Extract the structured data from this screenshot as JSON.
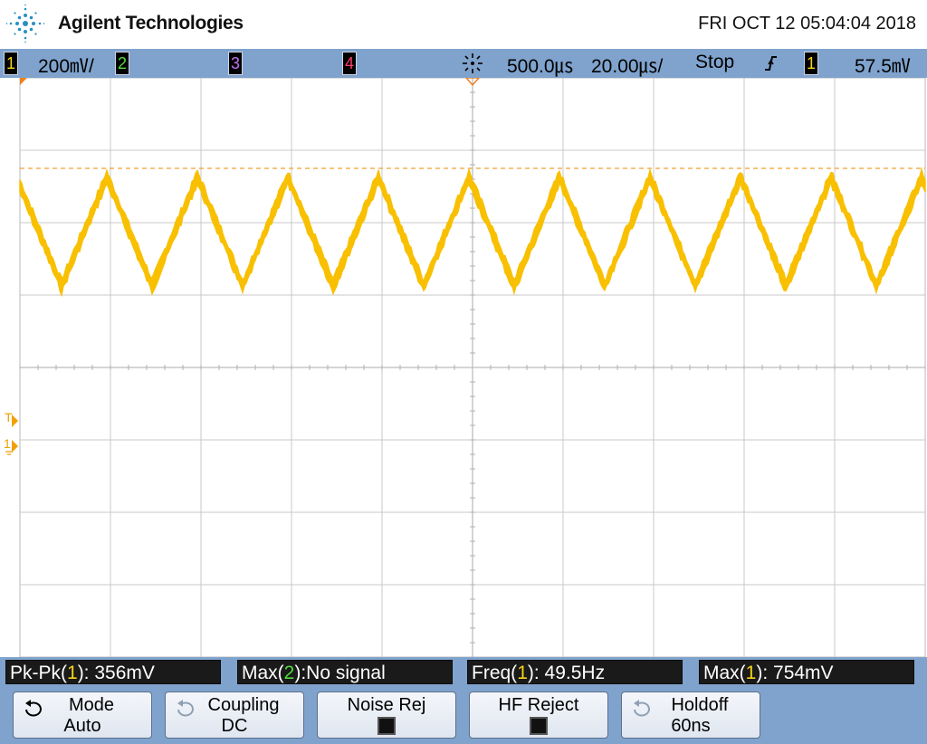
{
  "header": {
    "brand": "Agilent Technologies",
    "datetime": "FRI OCT 12 05:04:04 2018",
    "logo_icon": "agilent-spark-icon"
  },
  "status_bar": {
    "ch1": {
      "num": "1",
      "scale": "200㎷/",
      "color": "#f6d31a"
    },
    "ch2": {
      "num": "2",
      "color": "#4fdc3a"
    },
    "ch3": {
      "num": "3",
      "color": "#c070f0"
    },
    "ch4": {
      "num": "4",
      "color": "#ff3c6e"
    },
    "trigger_icon": "trigger-burst-icon",
    "time_delay": "500.0㎲",
    "time_scale": "20.00㎲/",
    "run_state": "Stop",
    "trigger_edge_icon": "rising-edge-icon",
    "trigger_source": "1",
    "trigger_level": "57.5㎷"
  },
  "screen": {
    "trace_color": "#f8c000",
    "trigger_level_line_color": "#f0a030",
    "marker_trigger": "T",
    "marker_ground": "1"
  },
  "measurements": [
    {
      "prefix": "Pk-Pk(",
      "ch": "1",
      "suffix": "): 356mV"
    },
    {
      "prefix": "Max(",
      "ch": "2",
      "suffix": "):No signal"
    },
    {
      "prefix": "Freq(",
      "ch": "1",
      "suffix": "): 49.5Hz"
    },
    {
      "prefix": "Max(",
      "ch": "1",
      "suffix": "): 754mV"
    }
  ],
  "softkeys": {
    "mode": {
      "line1": "Mode",
      "line2": "Auto",
      "icon": "rotate-arrow-icon"
    },
    "coupling": {
      "line1": "Coupling",
      "line2": "DC",
      "icon": "rotate-arrow-icon"
    },
    "noise_rej": {
      "line1": "Noise Rej",
      "checked": true
    },
    "hf_reject": {
      "line1": "HF Reject",
      "checked": true
    },
    "holdoff": {
      "line1": "Holdoff",
      "line2": "60ns",
      "icon": "rotate-arrow-icon"
    }
  }
}
